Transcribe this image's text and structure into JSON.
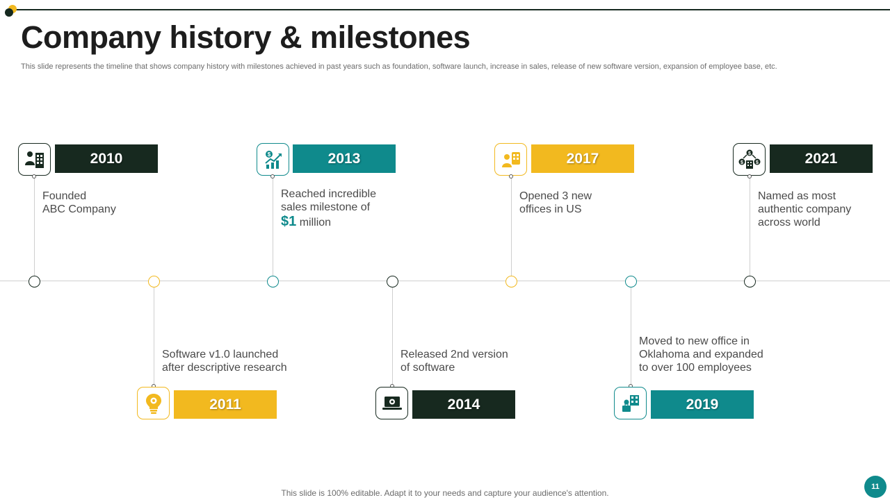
{
  "header": {
    "title": "Company history & milestones",
    "subtitle": "This slide represents the timeline that shows company history with milestones achieved in past years such as foundation, software launch, increase in sales, release of new software version, expansion of employee base, etc."
  },
  "milestones": [
    {
      "year": "2010",
      "lines": [
        "Founded",
        "ABC Company"
      ],
      "icon": "businessman-building-icon",
      "color": "#17291f"
    },
    {
      "year": "2011",
      "lines": [
        "Software v1.0 launched",
        "after descriptive research"
      ],
      "icon": "lightbulb-gear-icon",
      "color": "#f2b91f"
    },
    {
      "year": "2013",
      "lines": [
        "Reached incredible",
        "sales milestone of"
      ],
      "amount": "$1",
      "amount_suffix": "million",
      "icon": "growth-chart-icon",
      "color": "#0f8a8c"
    },
    {
      "year": "2014",
      "lines": [
        "Released 2nd version",
        "of software"
      ],
      "icon": "laptop-gear-icon",
      "color": "#17291f"
    },
    {
      "year": "2017",
      "lines": [
        "Opened 3 new",
        "offices in US"
      ],
      "icon": "person-office-icon",
      "color": "#f2b91f"
    },
    {
      "year": "2019",
      "lines": [
        "Moved to new office in",
        "Oklahoma and expanded",
        "to over 100 employees"
      ],
      "icon": "employee-building-icon",
      "color": "#0f8a8c"
    },
    {
      "year": "2021",
      "lines": [
        "Named as most",
        "authentic company",
        "across world"
      ],
      "icon": "money-network-icon",
      "color": "#17291f"
    }
  ],
  "footer": {
    "note": "This slide is 100% editable. Adapt it to your needs and capture your audience's attention.",
    "page_number": "11"
  }
}
